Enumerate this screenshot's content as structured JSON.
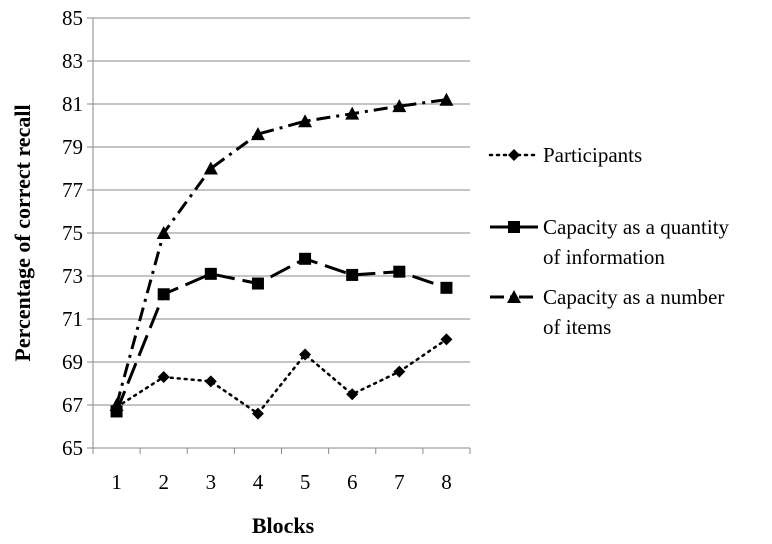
{
  "chart_data": {
    "type": "line",
    "xlabel": "Blocks",
    "ylabel": "Percentage of correct recall",
    "categories": [
      "1",
      "2",
      "3",
      "4",
      "5",
      "6",
      "7",
      "8"
    ],
    "y_ticks": [
      "65",
      "67",
      "69",
      "71",
      "73",
      "75",
      "77",
      "79",
      "81",
      "83",
      "85"
    ],
    "ylim": [
      65,
      85
    ],
    "grid": "horizontal",
    "legend_position": "right",
    "series": [
      {
        "name": "Participants",
        "legend_lines": [
          "Participants"
        ],
        "marker": "diamond",
        "line_style": "dotted",
        "values": [
          66.9,
          68.3,
          68.1,
          66.6,
          69.35,
          67.5,
          68.55,
          70.05
        ]
      },
      {
        "name": "Capacity as a quantity of information",
        "legend_lines": [
          "Capacity as a quantity",
          "of information"
        ],
        "marker": "square",
        "line_style": "dashed",
        "values": [
          66.7,
          72.15,
          73.1,
          72.65,
          73.8,
          73.05,
          73.2,
          72.45
        ]
      },
      {
        "name": "Capacity as a number of items",
        "legend_lines": [
          "Capacity as a number",
          "of items"
        ],
        "marker": "triangle",
        "line_style": "dash-dot",
        "values": [
          67.0,
          75.0,
          78.0,
          79.6,
          80.2,
          80.55,
          80.9,
          81.2
        ]
      }
    ]
  }
}
